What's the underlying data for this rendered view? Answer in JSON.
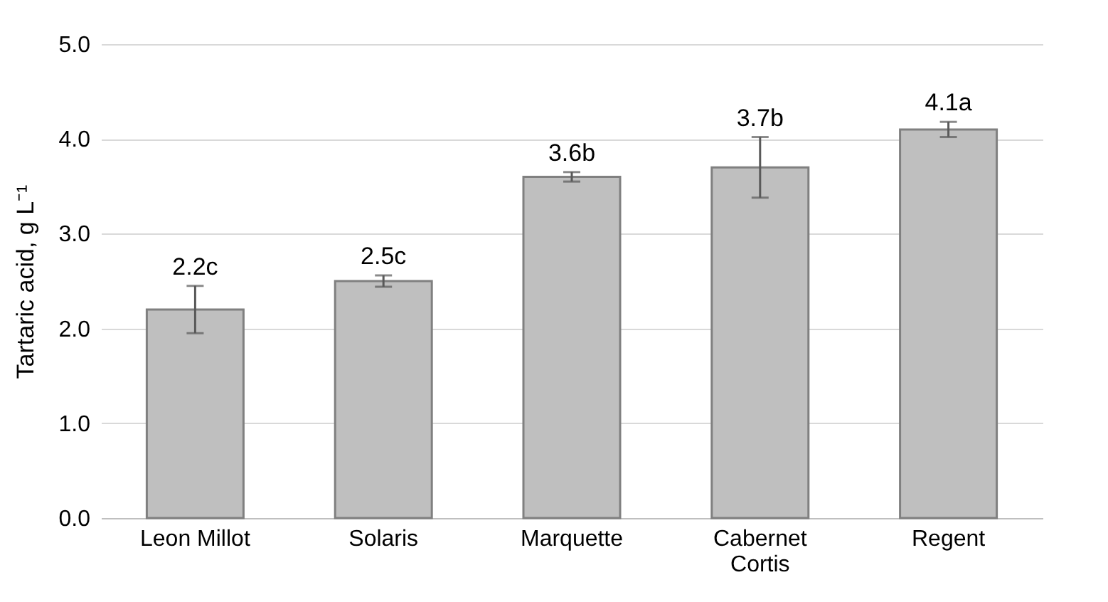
{
  "chart_data": {
    "type": "bar",
    "ylabel": "Tartaric acid, g L⁻¹",
    "categories": [
      "Leon Millot",
      "Solaris",
      "Marquette",
      "Cabernet Cortis",
      "Regent"
    ],
    "values": [
      2.2,
      2.5,
      3.6,
      3.7,
      4.1
    ],
    "errors": [
      0.25,
      0.06,
      0.05,
      0.32,
      0.08
    ],
    "value_labels": [
      "2.2c",
      "2.5c",
      "3.6b",
      "3.7b",
      "4.1a"
    ],
    "color": "#bfbfbf",
    "ylim": [
      0,
      5
    ],
    "yticks": [
      {
        "value": 0,
        "label": "0.0"
      },
      {
        "value": 1,
        "label": "1.0"
      },
      {
        "value": 2,
        "label": "2.0"
      },
      {
        "value": 3,
        "label": "3.0"
      },
      {
        "value": 4,
        "label": "4.0"
      },
      {
        "value": 5,
        "label": "5.0"
      }
    ],
    "grid": "y"
  }
}
